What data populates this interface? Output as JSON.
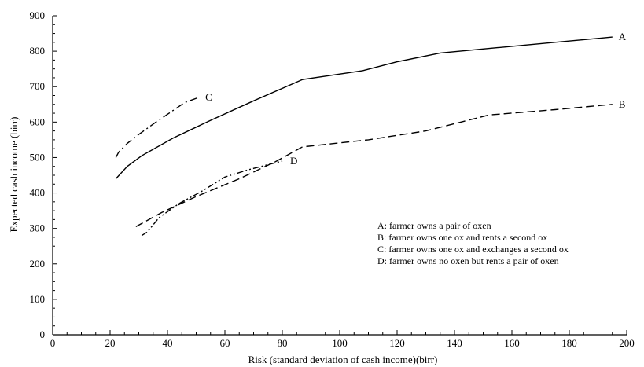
{
  "chart_data": {
    "type": "line",
    "title": "",
    "xlabel": "Risk (standard deviation of cash income)(birr)",
    "ylabel": "Expected cash income (birr)",
    "xlim": [
      0,
      200
    ],
    "ylim": [
      0,
      900
    ],
    "x_ticks": [
      0,
      20,
      40,
      60,
      80,
      100,
      120,
      140,
      160,
      180,
      200
    ],
    "y_ticks": [
      0,
      100,
      200,
      300,
      400,
      500,
      600,
      700,
      800,
      900
    ],
    "grid": false,
    "legend_position": "right",
    "legend": [
      "A:  farmer owns a pair of oxen",
      "B:  farmer owns one ox and rents a second ox",
      "C:  farmer owns one ox and exchanges a second ox",
      "D:  farmer owns no oxen but rents a pair of oxen"
    ],
    "series": [
      {
        "name": "A",
        "dash": "solid",
        "x": [
          22,
          26,
          31,
          42,
          55,
          70,
          87,
          108,
          120,
          135,
          155,
          175,
          195
        ],
        "y": [
          440,
          475,
          505,
          555,
          605,
          660,
          720,
          745,
          770,
          795,
          810,
          825,
          840
        ]
      },
      {
        "name": "B",
        "dash": "dashed",
        "x": [
          29,
          38,
          50,
          65,
          78,
          87,
          110,
          130,
          152,
          175,
          195
        ],
        "y": [
          305,
          345,
          390,
          440,
          490,
          530,
          550,
          575,
          620,
          635,
          650
        ]
      },
      {
        "name": "C",
        "dash": "dashdot",
        "x": [
          22,
          23,
          26,
          30,
          36,
          46,
          51
        ],
        "y": [
          500,
          515,
          540,
          565,
          600,
          655,
          670
        ]
      },
      {
        "name": "D",
        "dash": "dashdotdot",
        "x": [
          31,
          33,
          37,
          44,
          52,
          60,
          68,
          75,
          80
        ],
        "y": [
          280,
          290,
          330,
          370,
          405,
          445,
          465,
          480,
          490
        ]
      }
    ]
  }
}
